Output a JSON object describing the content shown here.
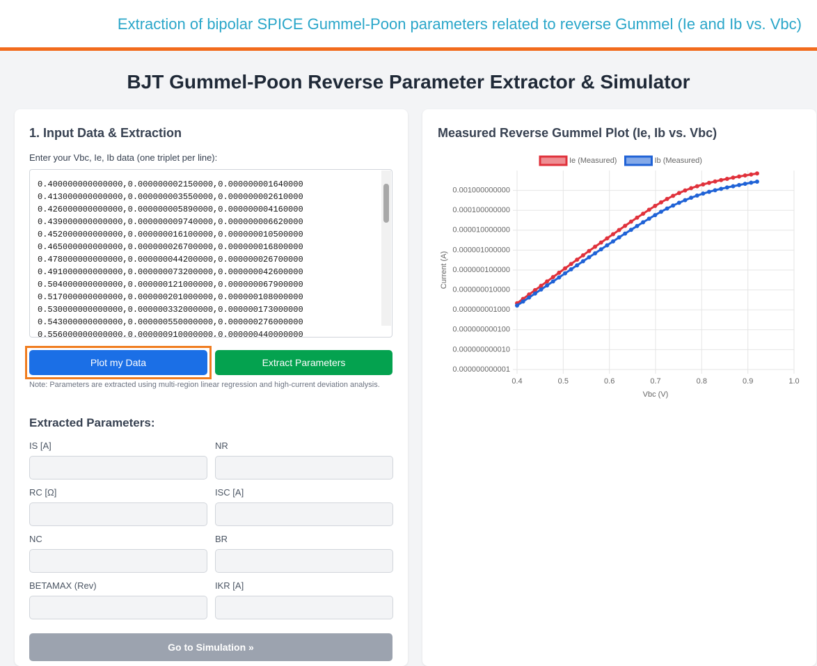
{
  "header": {
    "title": "Extraction of bipolar SPICE Gummel-Poon parameters related to reverse Gummel (Ie and Ib vs. Vbc)"
  },
  "page_title": "BJT Gummel-Poon Reverse Parameter Extractor & Simulator",
  "input_panel": {
    "heading": "1. Input Data & Extraction",
    "data_label": "Enter your Vbc, Ie, Ib data (one triplet per line):",
    "data_lines": [
      "0.400000000000000,0.000000002150000,0.000000001640000",
      "0.413000000000000,0.000000003550000,0.000000002610000",
      "0.426000000000000,0.000000005890000,0.000000004160000",
      "0.439000000000000,0.000000009740000,0.000000006620000",
      "0.452000000000000,0.000000016100000,0.000000010500000",
      "0.465000000000000,0.000000026700000,0.000000016800000",
      "0.478000000000000,0.000000044200000,0.000000026700000",
      "0.491000000000000,0.000000073200000,0.000000042600000",
      "0.504000000000000,0.000000121000000,0.000000067900000",
      "0.517000000000000,0.000000201000000,0.000000108000000",
      "0.530000000000000,0.000000332000000,0.000000173000000",
      "0.543000000000000,0.000000550000000,0.000000276000000",
      "0.556000000000000,0.000000910000000,0.000000440000000"
    ],
    "plot_button": "Plot my Data",
    "extract_button": "Extract Parameters",
    "note": "Note: Parameters are extracted using multi-region linear regression and high-current deviation analysis.",
    "params_heading": "Extracted Parameters:",
    "params": [
      "IS [A]",
      "NR",
      "RC [Ω]",
      "ISC [A]",
      "NC",
      "BR",
      "BETAMAX (Rev)",
      "IKR [A]"
    ],
    "simulation_button": "Go to Simulation »"
  },
  "chart_data": {
    "type": "line",
    "title": "Measured Reverse Gummel Plot (Ie, Ib vs. Vbc)",
    "x_label": "Vbc (V)",
    "y_label": "Current (A)",
    "x": [
      0.4,
      0.413,
      0.426,
      0.439,
      0.452,
      0.465,
      0.478,
      0.491,
      0.504,
      0.517,
      0.53,
      0.543,
      0.556,
      0.569,
      0.582,
      0.595,
      0.608,
      0.621,
      0.634,
      0.647,
      0.66,
      0.673,
      0.686,
      0.699,
      0.712,
      0.725,
      0.738,
      0.751,
      0.764,
      0.777,
      0.79,
      0.803,
      0.816,
      0.829,
      0.842,
      0.855,
      0.868,
      0.881,
      0.894,
      0.907,
      0.92
    ],
    "series": [
      {
        "name": "Ie (Measured)",
        "color": "#e0313b",
        "values": [
          2.15e-09,
          3.55e-09,
          5.89e-09,
          9.74e-09,
          1.61e-08,
          2.67e-08,
          4.42e-08,
          7.32e-08,
          1.21e-07,
          2.01e-07,
          3.32e-07,
          5.5e-07,
          9.1e-07,
          1.48e-06,
          2.4e-06,
          3.89e-06,
          6.31e-06,
          1.02e-05,
          1.66e-05,
          2.69e-05,
          4.27e-05,
          6.76e-05,
          0.000107,
          0.000166,
          0.000251,
          0.000372,
          0.000537,
          0.000741,
          0.001,
          0.00129,
          0.00162,
          0.002,
          0.0024,
          0.00282,
          0.00331,
          0.0038,
          0.00437,
          0.00501,
          0.00562,
          0.00631,
          0.00708
        ]
      },
      {
        "name": "Ib (Measured)",
        "color": "#1f62d6",
        "values": [
          1.64e-09,
          2.61e-09,
          4.16e-09,
          6.62e-09,
          1.05e-08,
          1.68e-08,
          2.67e-08,
          4.26e-08,
          6.79e-08,
          1.08e-07,
          1.73e-07,
          2.76e-07,
          4.4e-07,
          6.9e-07,
          1.1e-06,
          1.74e-06,
          2.75e-06,
          4.37e-06,
          6.76e-06,
          1.05e-05,
          1.62e-05,
          2.51e-05,
          3.8e-05,
          5.75e-05,
          8.51e-05,
          0.000123,
          0.000174,
          0.00024,
          0.000324,
          0.000427,
          0.00055,
          0.000692,
          0.000851,
          0.00102,
          0.0012,
          0.00141,
          0.00162,
          0.00186,
          0.00214,
          0.00245,
          0.00275
        ]
      }
    ],
    "xlim": [
      0.4,
      1.0
    ],
    "xticks": [
      0.4,
      0.5,
      0.6,
      0.7,
      0.8,
      0.9,
      {
        "value": 1.0,
        "label": "1.0"
      }
    ],
    "ylim": [
      1e-12,
      0.01
    ],
    "y_scale": "log",
    "yticks": [
      {
        "value": 1e-12,
        "label": "0.000000000001"
      },
      {
        "value": 1e-11,
        "label": "0.000000000010"
      },
      {
        "value": 1e-10,
        "label": "0.000000000100"
      },
      {
        "value": 1e-09,
        "label": "0.000000001000"
      },
      {
        "value": 1e-08,
        "label": "0.000000010000"
      },
      {
        "value": 1e-07,
        "label": "0.000000100000"
      },
      {
        "value": 1e-06,
        "label": "0.000001000000"
      },
      {
        "value": 1e-05,
        "label": "0.000010000000"
      },
      {
        "value": 0.0001,
        "label": "0.000100000000"
      },
      {
        "value": 0.001,
        "label": "0.001000000000"
      }
    ],
    "grid": true,
    "legend": "top"
  }
}
